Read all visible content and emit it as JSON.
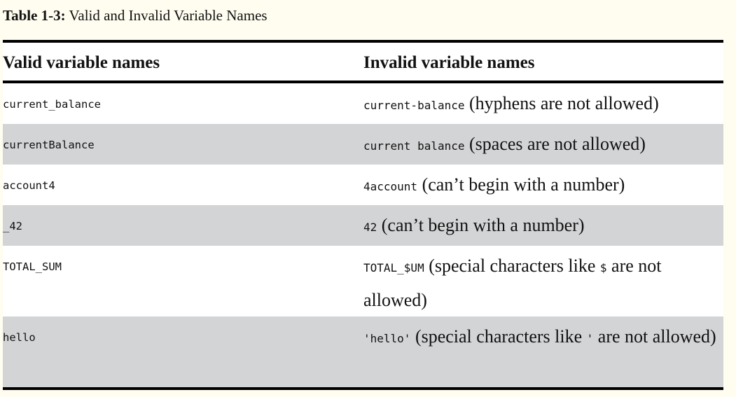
{
  "caption": {
    "label": "Table 1-3:",
    "title": "Valid and Invalid Variable Names"
  },
  "table": {
    "headers": [
      "Valid variable names",
      "Invalid variable names"
    ],
    "rows": [
      {
        "valid": "current_balance",
        "invalid_code": "current-balance",
        "reason": "(hyphens are not allowed)"
      },
      {
        "valid": "currentBalance",
        "invalid_code": "current balance",
        "reason": "(spaces are not allowed)"
      },
      {
        "valid": "account4",
        "invalid_code": "4account",
        "reason": "(can’t begin with a number)"
      },
      {
        "valid": "_42",
        "invalid_code": "42",
        "reason": "(can’t begin with a number)"
      },
      {
        "valid": "TOTAL_SUM",
        "invalid_code": "TOTAL_$UM",
        "reason_before": "(special characters like",
        "reason_char": "$",
        "reason_after": "are not allowed)"
      },
      {
        "valid": "hello",
        "invalid_code": "'hello'",
        "reason_before": "(special characters like",
        "reason_char": "'",
        "reason_after": "are not allowed)"
      }
    ]
  }
}
